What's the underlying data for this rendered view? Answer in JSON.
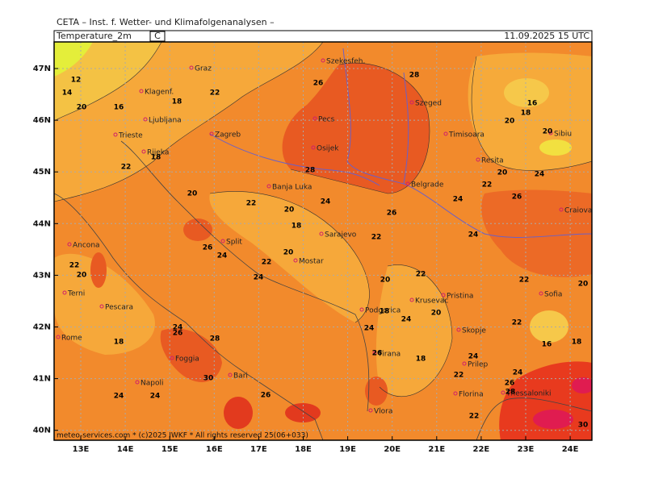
{
  "header": {
    "institute": "CETA – Inst. f. Wetter- und Klimafolgenanalysen –",
    "field": "Temperature_2m",
    "unit": "C",
    "valid": "11.09.2025 15 UTC"
  },
  "footer": "meteo-services.com * (c)2025 IWKF * All rights reserved 25(06+033)",
  "lat_labels": [
    "47N",
    "46N",
    "45N",
    "44N",
    "43N",
    "42N",
    "41N",
    "40N"
  ],
  "lon_labels": [
    "13E",
    "14E",
    "15E",
    "16E",
    "17E",
    "18E",
    "19E",
    "20E",
    "21E",
    "22E",
    "23E",
    "24E"
  ],
  "cities": [
    "Szekesfeh.",
    "Graz",
    "Klagenf.",
    "Ljubljana",
    "Zagreb",
    "Pecs",
    "Szeged",
    "Timisoara",
    "Sibiu",
    "Trieste",
    "Rijeka",
    "Osijek",
    "Resita",
    "Banja Luka",
    "Belgrade",
    "Craiova",
    "Sarajevo",
    "Split",
    "Ancona",
    "Mostar",
    "Terni",
    "Pescara",
    "Pristina",
    "Sofia",
    "Podgorica",
    "Krusevac",
    "Rome",
    "Skopje",
    "Foggia",
    "Tirana",
    "Prilep",
    "Bari",
    "Napoli",
    "Florina",
    "Thessaloniki",
    "Vlora"
  ],
  "contour_labels": [
    12,
    14,
    20,
    16,
    18,
    22,
    26,
    28,
    16,
    18,
    20,
    20,
    18,
    22,
    20,
    28,
    22,
    24,
    20,
    18,
    26,
    24,
    22,
    26,
    20,
    24,
    24,
    22,
    26,
    24,
    20,
    22,
    24,
    22,
    20,
    20,
    22,
    22,
    20,
    18,
    24,
    20,
    24,
    24,
    26,
    28,
    18,
    22,
    16,
    18,
    26,
    18,
    24,
    22,
    24,
    26,
    28,
    30,
    26,
    24,
    24,
    22,
    30
  ]
}
